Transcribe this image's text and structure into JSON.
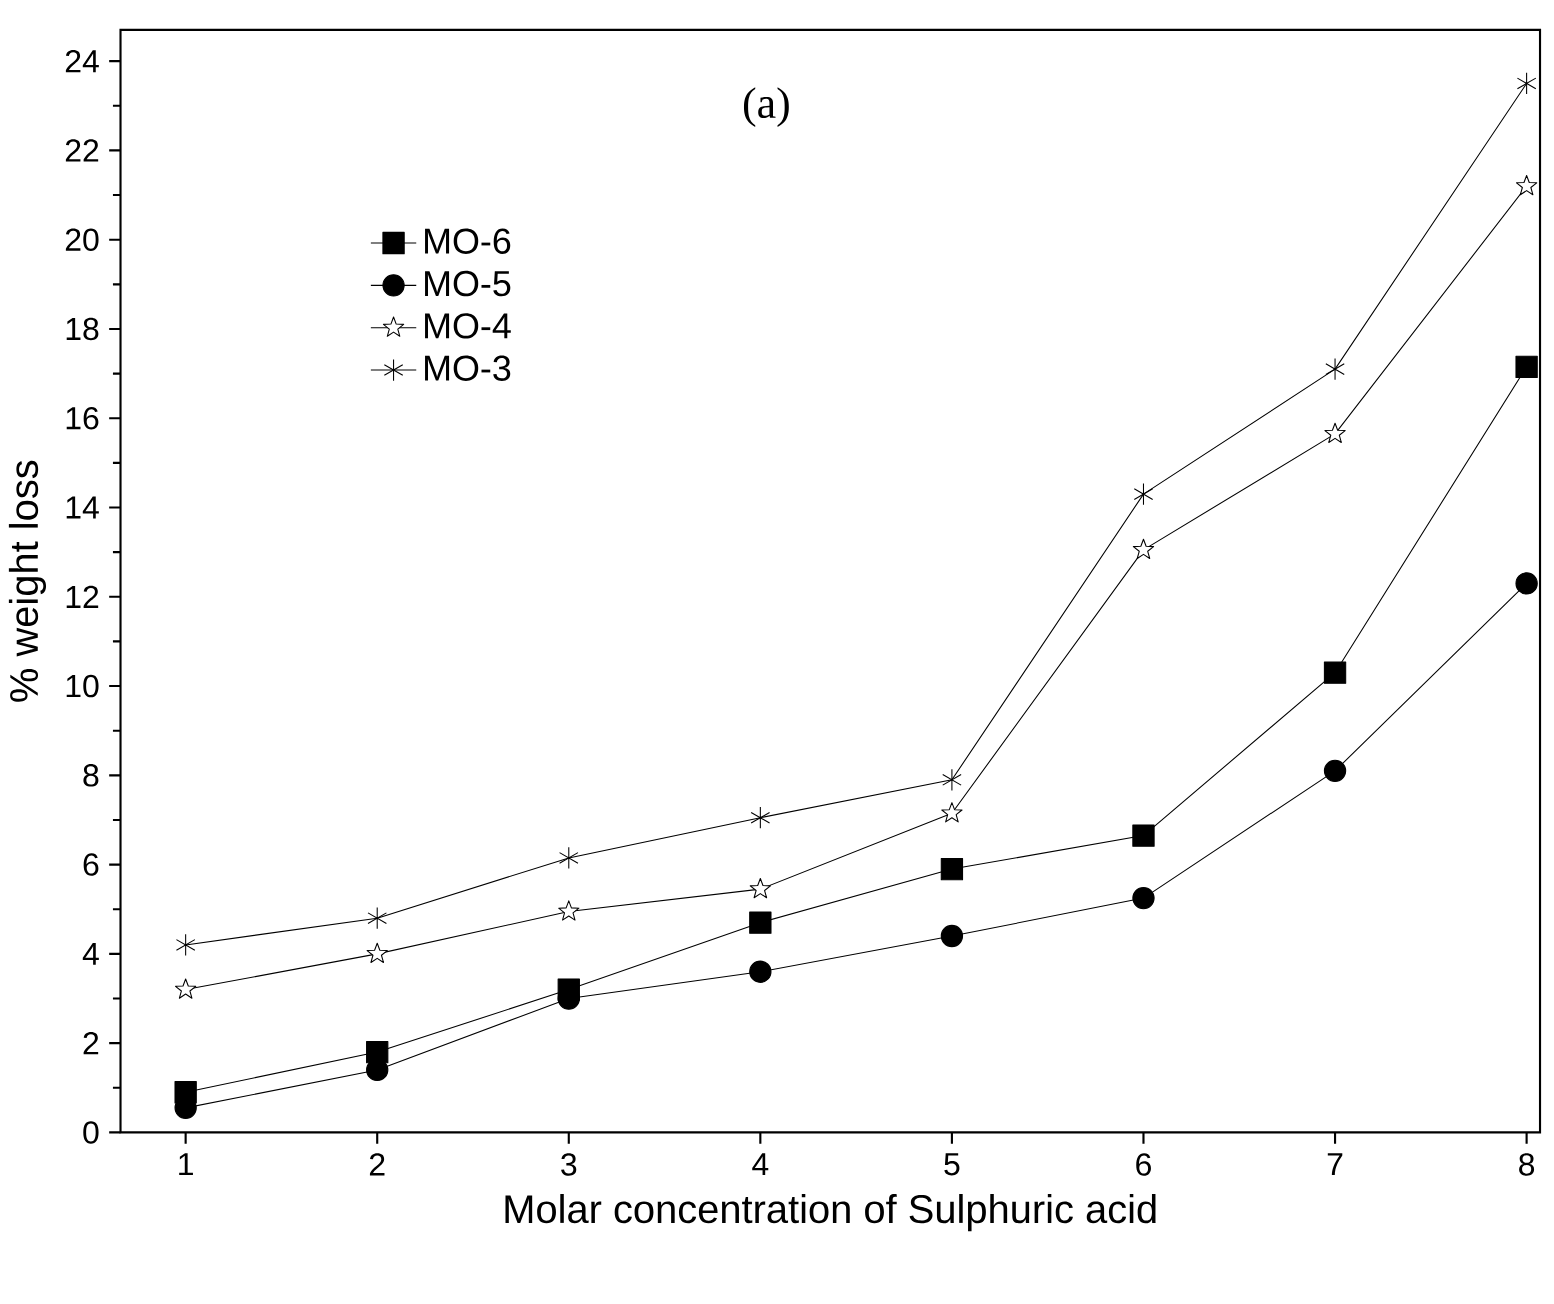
{
  "chart_data": {
    "type": "line",
    "xlabel": "Molar concentration of Sulphuric acid",
    "ylabel": "% weight loss",
    "annotations": [
      "(a)"
    ],
    "x": [
      1,
      2,
      3,
      4,
      5,
      6,
      7,
      8
    ],
    "series": [
      {
        "name": "MO-6",
        "color": "#000000",
        "marker": "square",
        "values": [
          0.9,
          1.8,
          3.2,
          4.7,
          5.9,
          6.65,
          10.3,
          17.15
        ]
      },
      {
        "name": "MO-5",
        "color": "#000000",
        "marker": "circle",
        "values": [
          0.55,
          1.4,
          3.0,
          3.6,
          4.4,
          5.25,
          8.1,
          12.3
        ]
      },
      {
        "name": "MO-4",
        "color": "#000000",
        "marker": "star",
        "values": [
          3.2,
          4.0,
          4.95,
          5.45,
          7.15,
          13.05,
          15.65,
          21.2
        ]
      },
      {
        "name": "MO-3",
        "color": "#000000",
        "marker": "cross",
        "values": [
          4.2,
          4.8,
          6.15,
          7.05,
          7.9,
          14.3,
          17.1,
          23.5
        ]
      }
    ],
    "xlim": [
      0.66,
      8.07
    ],
    "ylim": [
      0,
      24.7
    ],
    "xticks": [
      1,
      2,
      3,
      4,
      5,
      6,
      7,
      8
    ],
    "yticks": [
      0,
      2,
      4,
      6,
      8,
      10,
      12,
      14,
      16,
      18,
      20,
      22,
      24
    ],
    "legend": "top left",
    "grid": false
  }
}
